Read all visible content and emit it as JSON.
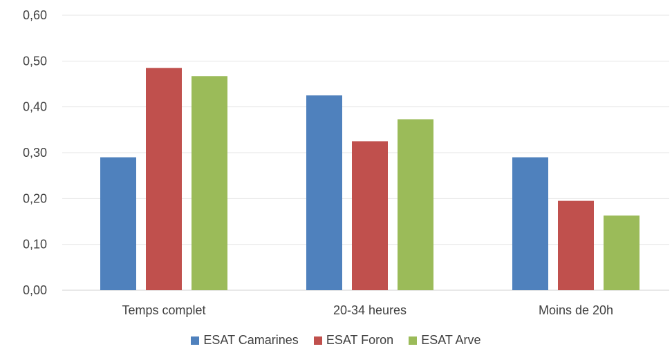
{
  "chart_data": {
    "type": "bar",
    "title": "",
    "xlabel": "",
    "ylabel": "",
    "categories": [
      "Temps complet",
      "20-34 heures",
      "Moins de 20h"
    ],
    "series": [
      {
        "name": "ESAT Camarines",
        "color": "#4f81bd",
        "values": [
          0.29,
          0.425,
          0.29
        ]
      },
      {
        "name": "ESAT Foron",
        "color": "#c0504d",
        "values": [
          0.485,
          0.325,
          0.195
        ]
      },
      {
        "name": "ESAT Arve",
        "color": "#9bbb59",
        "values": [
          0.467,
          0.373,
          0.163
        ]
      }
    ],
    "ylim": [
      0,
      0.6
    ],
    "yticks": [
      0,
      0.1,
      0.2,
      0.3,
      0.4,
      0.5,
      0.6
    ],
    "ytick_labels": [
      "0,00",
      "0,10",
      "0,20",
      "0,30",
      "0,40",
      "0,50",
      "0,60"
    ],
    "grid": true,
    "legend_position": "bottom"
  }
}
